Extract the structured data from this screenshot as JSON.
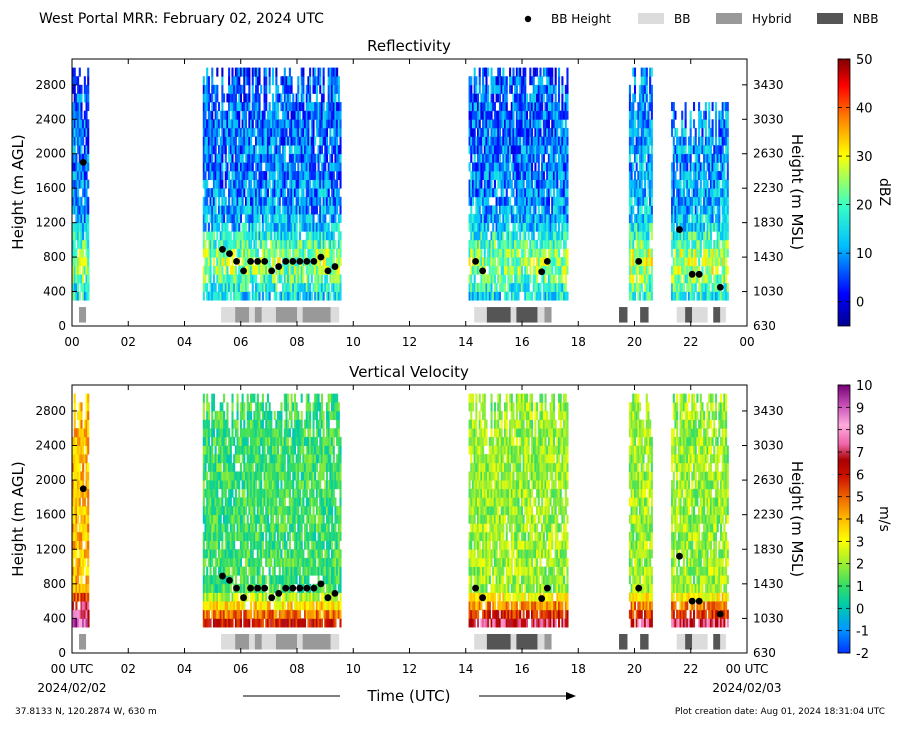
{
  "header": {
    "title": "West Portal MRR:  February 02, 2024 UTC"
  },
  "legend": {
    "items": [
      {
        "label": "BB Height",
        "kind": "dot",
        "color": "#000000"
      },
      {
        "label": "BB",
        "kind": "rect",
        "color": "#dcdcdc"
      },
      {
        "label": "Hybrid",
        "kind": "rect",
        "color": "#999999"
      },
      {
        "label": "NBB",
        "kind": "rect",
        "color": "#555555"
      }
    ]
  },
  "footer": {
    "coords": "37.8133 N, 120.2874 W, 630 m",
    "xlabel": "Time (UTC)",
    "creation": "Plot creation date: Aug 01, 2024 18:31:04 UTC",
    "start_date": "2024/02/02",
    "end_date": "2024/02/03"
  },
  "chart_data": [
    {
      "type": "heatmap",
      "title": "Reflectivity",
      "xlabel": "",
      "ylabel": "Height (m AGL)",
      "ylabel_right": "Height (m MSL)",
      "xlim": [
        0,
        24
      ],
      "ylim": [
        0,
        3100
      ],
      "x_ticks": [
        "00",
        "02",
        "04",
        "06",
        "08",
        "10",
        "12",
        "14",
        "16",
        "18",
        "20",
        "22",
        "00"
      ],
      "y_ticks": [
        0,
        400,
        800,
        1200,
        1600,
        2000,
        2400,
        2800
      ],
      "y_ticks_right": [
        "630",
        "1030",
        "1430",
        "1830",
        "2230",
        "2630",
        "3030",
        "3430"
      ],
      "colorbar": {
        "label": "dBZ",
        "min": -5,
        "max": 50,
        "ticks": [
          0,
          10,
          20,
          30,
          40,
          50
        ]
      },
      "bb_height": {
        "x": [
          0.4,
          5.35,
          5.6,
          5.85,
          6.1,
          6.35,
          6.6,
          6.85,
          7.1,
          7.35,
          7.6,
          7.85,
          8.1,
          8.35,
          8.6,
          8.85,
          9.1,
          9.35,
          14.35,
          14.6,
          16.7,
          16.9,
          20.15,
          21.6,
          22.05,
          22.3,
          23.05
        ],
        "y": [
          1900,
          890,
          840,
          750,
          640,
          750,
          750,
          750,
          640,
          690,
          750,
          750,
          750,
          750,
          750,
          800,
          640,
          690,
          750,
          640,
          630,
          750,
          750,
          1120,
          600,
          600,
          450
        ]
      },
      "bb_type": [
        {
          "x0": 0.25,
          "x1": 0.5,
          "type": "Hybrid"
        },
        {
          "x0": 5.3,
          "x1": 5.8,
          "type": "BB"
        },
        {
          "x0": 5.8,
          "x1": 6.3,
          "type": "Hybrid"
        },
        {
          "x0": 6.3,
          "x1": 6.5,
          "type": "BB"
        },
        {
          "x0": 6.5,
          "x1": 6.75,
          "type": "Hybrid"
        },
        {
          "x0": 6.75,
          "x1": 7.25,
          "type": "BB"
        },
        {
          "x0": 7.25,
          "x1": 8.0,
          "type": "Hybrid"
        },
        {
          "x0": 8.0,
          "x1": 8.2,
          "type": "BB"
        },
        {
          "x0": 8.2,
          "x1": 9.2,
          "type": "Hybrid"
        },
        {
          "x0": 9.2,
          "x1": 9.5,
          "type": "BB"
        },
        {
          "x0": 14.3,
          "x1": 14.75,
          "type": "BB"
        },
        {
          "x0": 14.75,
          "x1": 15.6,
          "type": "NBB"
        },
        {
          "x0": 15.6,
          "x1": 15.8,
          "type": "BB"
        },
        {
          "x0": 15.8,
          "x1": 16.55,
          "type": "NBB"
        },
        {
          "x0": 16.55,
          "x1": 16.8,
          "type": "BB"
        },
        {
          "x0": 16.8,
          "x1": 17.05,
          "type": "Hybrid"
        },
        {
          "x0": 19.45,
          "x1": 19.75,
          "type": "NBB"
        },
        {
          "x0": 20.2,
          "x1": 20.5,
          "type": "NBB"
        },
        {
          "x0": 21.5,
          "x1": 21.8,
          "type": "BB"
        },
        {
          "x0": 21.8,
          "x1": 22.05,
          "type": "NBB"
        },
        {
          "x0": 22.05,
          "x1": 22.6,
          "type": "BB"
        },
        {
          "x0": 22.8,
          "x1": 23.05,
          "type": "NBB"
        },
        {
          "x0": 23.05,
          "x1": 23.25,
          "type": "BB"
        }
      ],
      "echo_regions": [
        {
          "x0": 0.0,
          "x1": 0.55,
          "top": 3000,
          "dominant": 12
        },
        {
          "x0": 0.55,
          "x1": 0.6,
          "top": 900,
          "dominant": 10
        },
        {
          "x0": 4.65,
          "x1": 9.55,
          "top": 3000,
          "dominant": 12
        },
        {
          "x0": 14.1,
          "x1": 17.6,
          "top": 3000,
          "dominant": 12
        },
        {
          "x0": 19.8,
          "x1": 20.6,
          "top": 3000,
          "dominant": 15
        },
        {
          "x0": 21.3,
          "x1": 23.3,
          "top": 2600,
          "dominant": 14
        }
      ]
    },
    {
      "type": "heatmap",
      "title": "Vertical Velocity",
      "xlabel": "Time (UTC)",
      "ylabel": "Height (m AGL)",
      "ylabel_right": "Height (m MSL)",
      "xlim": [
        0,
        24
      ],
      "ylim": [
        0,
        3100
      ],
      "x_ticks": [
        "00 UTC",
        "02",
        "04",
        "06",
        "08",
        "10",
        "12",
        "14",
        "16",
        "18",
        "20",
        "22",
        "00 UTC"
      ],
      "y_ticks": [
        0,
        400,
        800,
        1200,
        1600,
        2000,
        2400,
        2800
      ],
      "y_ticks_right": [
        "630",
        "1030",
        "1430",
        "1830",
        "2230",
        "2630",
        "3030",
        "3430"
      ],
      "colorbar": {
        "label": "m/s",
        "min": -2,
        "max": 10,
        "ticks": [
          -2,
          -1,
          0,
          1,
          2,
          3,
          4,
          5,
          6,
          7,
          8,
          9,
          10
        ]
      },
      "bb_height": {
        "x": [
          0.4,
          5.35,
          5.6,
          5.85,
          6.1,
          6.35,
          6.6,
          6.85,
          7.1,
          7.35,
          7.6,
          7.85,
          8.1,
          8.35,
          8.6,
          8.85,
          9.1,
          9.35,
          14.35,
          14.6,
          16.7,
          16.9,
          20.15,
          21.6,
          22.05,
          22.3,
          23.05
        ],
        "y": [
          1900,
          890,
          840,
          750,
          640,
          750,
          750,
          750,
          640,
          690,
          750,
          750,
          750,
          750,
          750,
          800,
          640,
          690,
          750,
          640,
          630,
          750,
          750,
          1120,
          600,
          600,
          450
        ]
      },
      "bb_type": [
        {
          "x0": 0.25,
          "x1": 0.5,
          "type": "Hybrid"
        },
        {
          "x0": 5.3,
          "x1": 5.8,
          "type": "BB"
        },
        {
          "x0": 5.8,
          "x1": 6.3,
          "type": "Hybrid"
        },
        {
          "x0": 6.3,
          "x1": 6.5,
          "type": "BB"
        },
        {
          "x0": 6.5,
          "x1": 6.75,
          "type": "Hybrid"
        },
        {
          "x0": 6.75,
          "x1": 7.25,
          "type": "BB"
        },
        {
          "x0": 7.25,
          "x1": 8.0,
          "type": "Hybrid"
        },
        {
          "x0": 8.0,
          "x1": 8.2,
          "type": "BB"
        },
        {
          "x0": 8.2,
          "x1": 9.2,
          "type": "Hybrid"
        },
        {
          "x0": 9.2,
          "x1": 9.5,
          "type": "BB"
        },
        {
          "x0": 14.3,
          "x1": 14.75,
          "type": "BB"
        },
        {
          "x0": 14.75,
          "x1": 15.6,
          "type": "NBB"
        },
        {
          "x0": 15.6,
          "x1": 15.8,
          "type": "BB"
        },
        {
          "x0": 15.8,
          "x1": 16.55,
          "type": "NBB"
        },
        {
          "x0": 16.55,
          "x1": 16.8,
          "type": "BB"
        },
        {
          "x0": 16.8,
          "x1": 17.05,
          "type": "Hybrid"
        },
        {
          "x0": 19.45,
          "x1": 19.75,
          "type": "NBB"
        },
        {
          "x0": 20.2,
          "x1": 20.5,
          "type": "NBB"
        },
        {
          "x0": 21.5,
          "x1": 21.8,
          "type": "BB"
        },
        {
          "x0": 21.8,
          "x1": 22.05,
          "type": "NBB"
        },
        {
          "x0": 22.05,
          "x1": 22.6,
          "type": "BB"
        },
        {
          "x0": 22.8,
          "x1": 23.05,
          "type": "NBB"
        },
        {
          "x0": 23.05,
          "x1": 23.25,
          "type": "BB"
        }
      ],
      "echo_regions": [
        {
          "x0": 0.0,
          "x1": 0.55,
          "top": 3000,
          "dominant": 4
        },
        {
          "x0": 0.55,
          "x1": 0.6,
          "top": 900,
          "dominant": 2
        },
        {
          "x0": 4.65,
          "x1": 9.55,
          "top": 3000,
          "dominant": 1
        },
        {
          "x0": 14.1,
          "x1": 17.6,
          "top": 3000,
          "dominant": 2
        },
        {
          "x0": 19.8,
          "x1": 20.6,
          "top": 3000,
          "dominant": 2
        },
        {
          "x0": 21.3,
          "x1": 23.3,
          "top": 3000,
          "dominant": 2
        }
      ]
    }
  ]
}
